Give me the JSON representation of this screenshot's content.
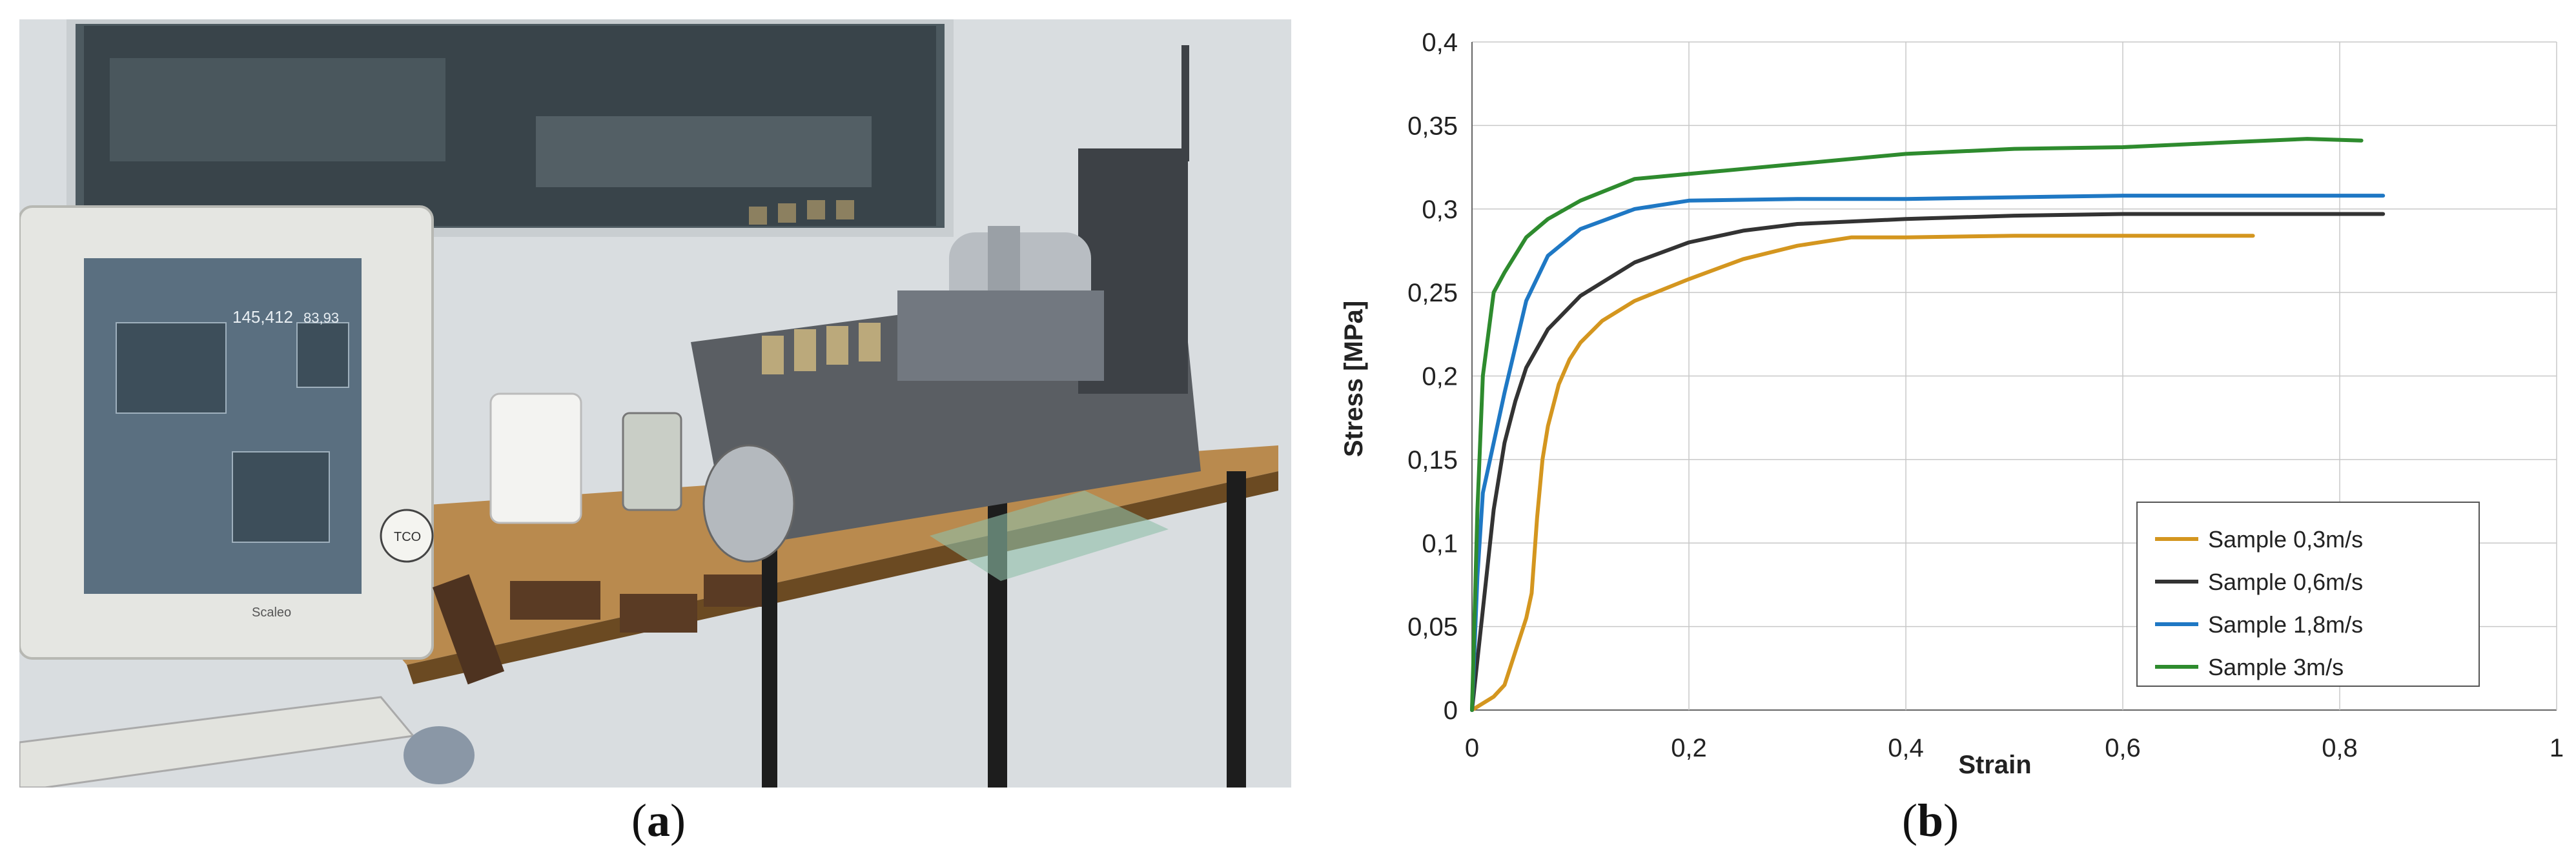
{
  "captions": {
    "a": "a",
    "b": "b"
  },
  "photo": {
    "monitor_value_1": "145,412",
    "monitor_value_2": "83,93",
    "monitor_brand": "Scaleo",
    "monitor_badge": "TCO"
  },
  "chart_data": {
    "type": "line",
    "xlabel": "Strain",
    "ylabel": "Stress  [MPa]",
    "xlim": [
      0,
      1
    ],
    "ylim": [
      0,
      0.4
    ],
    "x_ticks": [
      "0",
      "0,2",
      "0,4",
      "0,6",
      "0,8",
      "1"
    ],
    "y_ticks": [
      "0",
      "0,05",
      "0,1",
      "0,15",
      "0,2",
      "0,25",
      "0,3",
      "0,35",
      "0,4"
    ],
    "grid": true,
    "legend_position": "bottom-right",
    "series": [
      {
        "name": "Sample 0,3m/s",
        "color": "#d4961f",
        "x": [
          0,
          0.02,
          0.03,
          0.04,
          0.05,
          0.055,
          0.06,
          0.065,
          0.07,
          0.08,
          0.09,
          0.1,
          0.12,
          0.15,
          0.2,
          0.25,
          0.3,
          0.35,
          0.4,
          0.5,
          0.6,
          0.72
        ],
        "y": [
          0,
          0.008,
          0.015,
          0.035,
          0.055,
          0.07,
          0.115,
          0.15,
          0.17,
          0.195,
          0.21,
          0.22,
          0.233,
          0.245,
          0.258,
          0.27,
          0.278,
          0.283,
          0.283,
          0.284,
          0.284,
          0.284
        ]
      },
      {
        "name": "Sample 0,6m/s",
        "color": "#333333",
        "x": [
          0,
          0.01,
          0.02,
          0.03,
          0.04,
          0.05,
          0.07,
          0.1,
          0.15,
          0.2,
          0.25,
          0.3,
          0.4,
          0.5,
          0.6,
          0.7,
          0.84
        ],
        "y": [
          0,
          0.06,
          0.12,
          0.16,
          0.185,
          0.205,
          0.228,
          0.248,
          0.268,
          0.28,
          0.287,
          0.291,
          0.294,
          0.296,
          0.297,
          0.297,
          0.297
        ]
      },
      {
        "name": "Sample 1,8m/s",
        "color": "#1f78c4",
        "x": [
          0,
          0.005,
          0.01,
          0.02,
          0.03,
          0.05,
          0.07,
          0.1,
          0.15,
          0.2,
          0.3,
          0.4,
          0.5,
          0.6,
          0.7,
          0.84
        ],
        "y": [
          0,
          0.08,
          0.13,
          0.16,
          0.19,
          0.245,
          0.272,
          0.288,
          0.3,
          0.305,
          0.306,
          0.306,
          0.307,
          0.308,
          0.308,
          0.308
        ]
      },
      {
        "name": "Sample 3m/s",
        "color": "#2e8b2e",
        "x": [
          0,
          0.005,
          0.01,
          0.02,
          0.03,
          0.05,
          0.07,
          0.1,
          0.15,
          0.2,
          0.25,
          0.3,
          0.4,
          0.5,
          0.6,
          0.7,
          0.77,
          0.82
        ],
        "y": [
          0,
          0.12,
          0.2,
          0.25,
          0.262,
          0.283,
          0.294,
          0.305,
          0.318,
          0.321,
          0.324,
          0.327,
          0.333,
          0.336,
          0.337,
          0.34,
          0.342,
          0.341
        ]
      }
    ]
  }
}
